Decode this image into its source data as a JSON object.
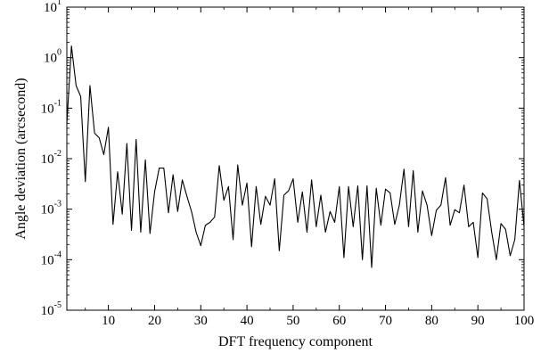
{
  "chart_data": {
    "type": "line",
    "xlabel": "DFT frequency component",
    "ylabel": "Angle deviation (arcsecond)",
    "xlim": [
      1,
      100
    ],
    "ylim": [
      1e-05,
      10
    ],
    "yscale": "log",
    "grid": false,
    "x_ticks": [
      10,
      20,
      30,
      40,
      50,
      60,
      70,
      80,
      90,
      100
    ],
    "y_ticks": [
      {
        "value": 1e-05,
        "base": "10",
        "exp": "-5"
      },
      {
        "value": 0.0001,
        "base": "10",
        "exp": "-4"
      },
      {
        "value": 0.001,
        "base": "10",
        "exp": "-3"
      },
      {
        "value": 0.01,
        "base": "10",
        "exp": "-2"
      },
      {
        "value": 0.1,
        "base": "10",
        "exp": "-1"
      },
      {
        "value": 1,
        "base": "10",
        "exp": "0"
      },
      {
        "value": 10,
        "base": "10",
        "exp": "1"
      }
    ],
    "series": [
      {
        "color": "#000000",
        "x": [
          1,
          2,
          3,
          4,
          5,
          6,
          7,
          8,
          9,
          10,
          11,
          12,
          13,
          14,
          15,
          16,
          17,
          18,
          19,
          20,
          21,
          22,
          23,
          24,
          25,
          26,
          27,
          28,
          29,
          30,
          31,
          32,
          33,
          34,
          35,
          36,
          37,
          38,
          39,
          40,
          41,
          42,
          43,
          44,
          45,
          46,
          47,
          48,
          49,
          50,
          51,
          52,
          53,
          54,
          55,
          56,
          57,
          58,
          59,
          60,
          61,
          62,
          63,
          64,
          65,
          66,
          67,
          68,
          69,
          70,
          71,
          72,
          73,
          74,
          75,
          76,
          77,
          78,
          79,
          80,
          81,
          82,
          83,
          84,
          85,
          86,
          87,
          88,
          89,
          90,
          91,
          92,
          93,
          94,
          95,
          96,
          97,
          98,
          99,
          100
        ],
        "values": [
          0.05,
          1.7,
          0.28,
          0.17,
          0.0035,
          0.28,
          0.032,
          0.026,
          0.012,
          0.042,
          0.0005,
          0.0055,
          0.0008,
          0.02,
          0.00038,
          0.024,
          0.00035,
          0.0095,
          0.00033,
          0.0022,
          0.0065,
          0.0065,
          0.00085,
          0.0048,
          0.0009,
          0.0038,
          0.0018,
          0.0009,
          0.00035,
          0.00019,
          0.00048,
          0.00055,
          0.0007,
          0.0073,
          0.0015,
          0.0028,
          0.00025,
          0.0075,
          0.0012,
          0.0033,
          0.00018,
          0.0028,
          0.0005,
          0.0018,
          0.0012,
          0.004,
          0.00015,
          0.0019,
          0.0023,
          0.004,
          0.00055,
          0.0022,
          0.00035,
          0.0038,
          0.00045,
          0.0019,
          0.00035,
          0.0009,
          0.00055,
          0.0028,
          0.00011,
          0.0028,
          0.00045,
          0.0029,
          0.0001,
          0.0029,
          7e-05,
          0.0026,
          0.00048,
          0.0025,
          0.0021,
          0.0005,
          0.0012,
          0.0062,
          0.00045,
          0.0058,
          0.00035,
          0.0023,
          0.0012,
          0.0003,
          0.00095,
          0.0012,
          0.0042,
          0.00048,
          0.00098,
          0.00085,
          0.003,
          0.00045,
          0.00055,
          0.00011,
          0.0021,
          0.0016,
          0.00035,
          0.0001,
          0.00052,
          0.0004,
          0.00012,
          0.00025,
          0.0037,
          0.00045
        ]
      }
    ]
  }
}
